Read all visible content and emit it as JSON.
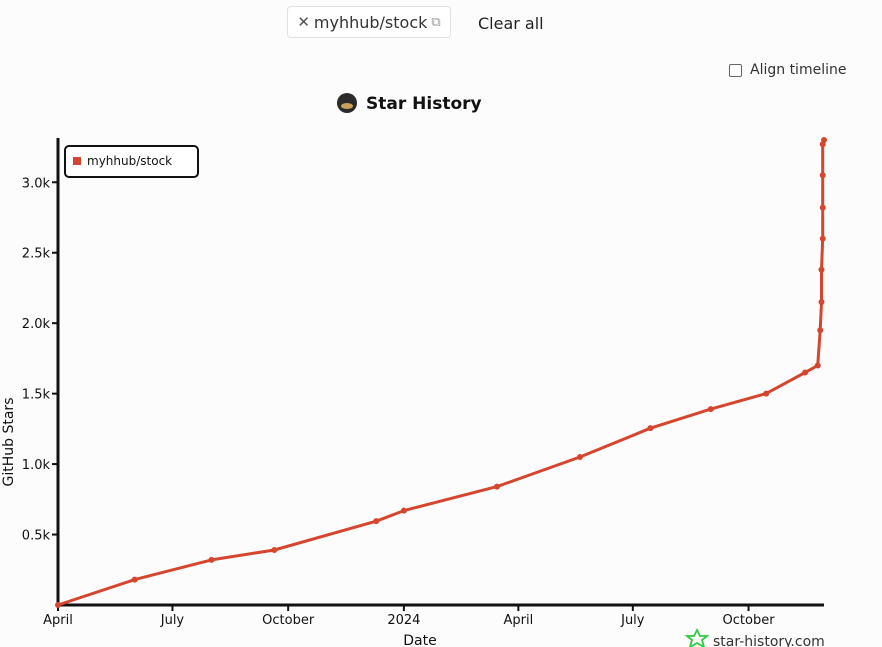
{
  "toolbar": {
    "repo_chip_label": "myhhub/stock",
    "clear_all_label": "Clear all",
    "close_glyph": "✕",
    "external_glyph": "⧉"
  },
  "options": {
    "align_timeline_label": "Align timeline",
    "align_timeline_checked": false
  },
  "colors": {
    "series": "#d6452d",
    "brand_green": "#2ecc40",
    "axis": "#111111"
  },
  "branding": {
    "watermark": "star-history.com"
  },
  "chart_data": {
    "type": "line",
    "title": "Star History",
    "xlabel": "Date",
    "ylabel": "GitHub Stars",
    "x_ticks": [
      "April",
      "July",
      "October",
      "2024",
      "April",
      "July",
      "October"
    ],
    "y_ticks": [
      "0.5k",
      "1.0k",
      "1.5k",
      "2.0k",
      "2.5k",
      "3.0k"
    ],
    "ylim": [
      0,
      3300
    ],
    "xlim": [
      "2023-04-01",
      "2024-11-30"
    ],
    "grid": false,
    "legend_position": "top-left",
    "series": [
      {
        "name": "myhhub/stock",
        "x": [
          "2023-04-01",
          "2023-06-01",
          "2023-08-01",
          "2023-09-20",
          "2023-12-10",
          "2024-01-01",
          "2024-03-15",
          "2024-05-20",
          "2024-07-15",
          "2024-09-01",
          "2024-10-15",
          "2024-11-15",
          "2024-11-25",
          "2024-11-27",
          "2024-11-28",
          "2024-11-28",
          "2024-11-29",
          "2024-11-29",
          "2024-11-29",
          "2024-11-29",
          "2024-11-30"
        ],
        "y": [
          0,
          180,
          320,
          390,
          595,
          670,
          840,
          1050,
          1255,
          1390,
          1500,
          1650,
          1700,
          1950,
          2150,
          2380,
          2600,
          2820,
          3050,
          3270,
          3300
        ]
      }
    ]
  }
}
